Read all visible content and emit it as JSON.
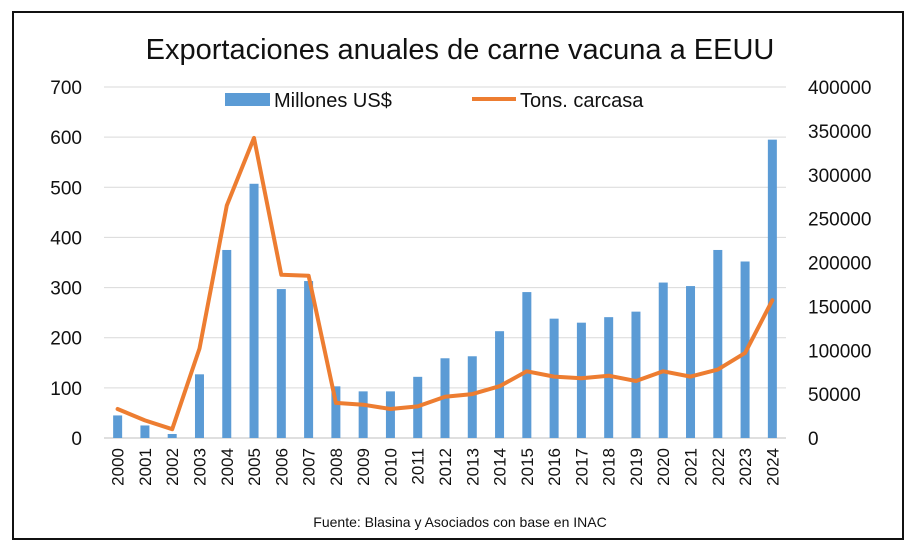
{
  "chart_data": {
    "type": "bar+line",
    "title": "Exportaciones anuales de carne vacuna a EEUU",
    "source": "Fuente: Blasina y Asociados con base en INAC",
    "categories": [
      "2000",
      "2001",
      "2002",
      "2003",
      "2004",
      "2005",
      "2006",
      "2007",
      "2008",
      "2009",
      "2010",
      "2011",
      "2012",
      "2013",
      "2014",
      "2015",
      "2016",
      "2017",
      "2018",
      "2019",
      "2020",
      "2021",
      "2022",
      "2023",
      "2024"
    ],
    "series": [
      {
        "name": "Millones US$",
        "type": "bar",
        "axis": "left",
        "color": "#5b9bd5",
        "values": [
          45,
          25,
          8,
          127,
          375,
          507,
          297,
          313,
          103,
          93,
          93,
          122,
          159,
          163,
          213,
          291,
          238,
          230,
          241,
          252,
          310,
          303,
          375,
          352,
          595
        ]
      },
      {
        "name": "Tons. carcasa",
        "type": "line",
        "axis": "right",
        "color": "#ed7d31",
        "values": [
          33000,
          20000,
          10000,
          102000,
          265000,
          342000,
          186000,
          185000,
          40000,
          38000,
          33000,
          36000,
          47000,
          50000,
          59000,
          76000,
          70000,
          68000,
          71000,
          65000,
          76000,
          70000,
          78000,
          97000,
          157000
        ]
      }
    ],
    "y_left": {
      "ylim": [
        0,
        700
      ],
      "ticks": [
        "0",
        "100",
        "200",
        "300",
        "400",
        "500",
        "600",
        "700"
      ]
    },
    "y_right": {
      "ylim": [
        0,
        400000
      ],
      "ticks": [
        "0",
        "50000",
        "100000",
        "150000",
        "200000",
        "250000",
        "300000",
        "350000",
        "400000"
      ]
    },
    "grid": true,
    "legend_position": "top"
  }
}
